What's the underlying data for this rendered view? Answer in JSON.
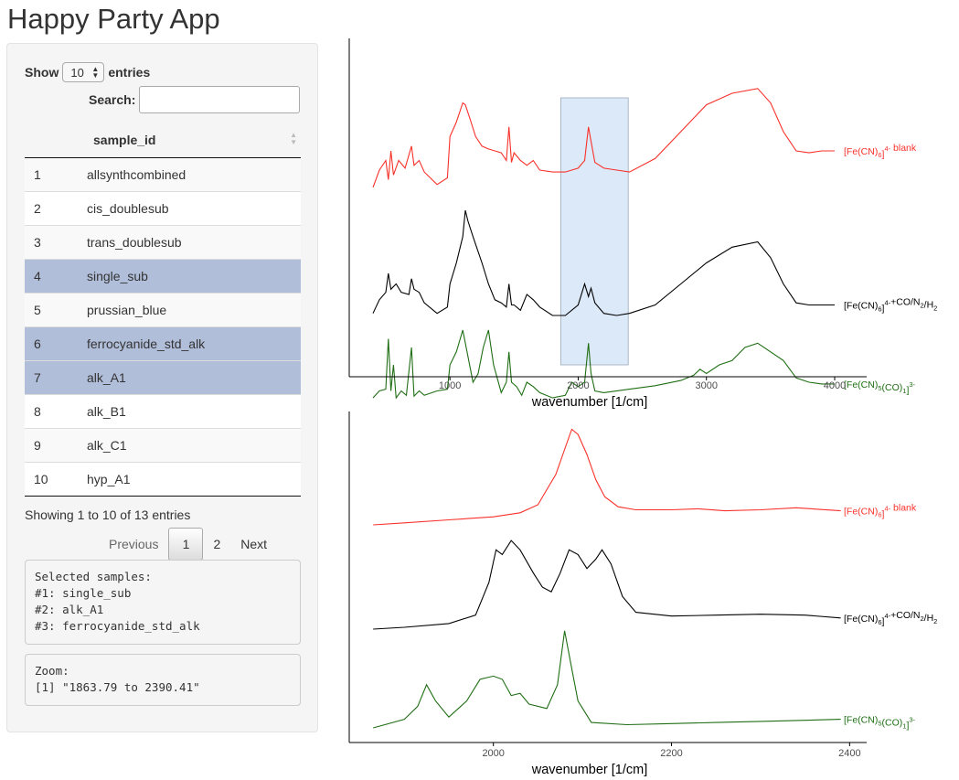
{
  "app": {
    "title": "Happy Party App"
  },
  "table_controls": {
    "show_label": "Show",
    "entries_value": "10",
    "entries_label": "entries",
    "search_label": "Search:",
    "search_value": ""
  },
  "table": {
    "column_header": "sample_id",
    "rows": [
      {
        "id": "1",
        "name": "allsynthcombined",
        "selected": false
      },
      {
        "id": "2",
        "name": "cis_doublesub",
        "selected": false
      },
      {
        "id": "3",
        "name": "trans_doublesub",
        "selected": false
      },
      {
        "id": "4",
        "name": "single_sub",
        "selected": true
      },
      {
        "id": "5",
        "name": "prussian_blue",
        "selected": false
      },
      {
        "id": "6",
        "name": "ferrocyanide_std_alk",
        "selected": true
      },
      {
        "id": "7",
        "name": "alk_A1",
        "selected": true
      },
      {
        "id": "8",
        "name": "alk_B1",
        "selected": false
      },
      {
        "id": "9",
        "name": "alk_C1",
        "selected": false
      },
      {
        "id": "10",
        "name": "hyp_A1",
        "selected": false
      }
    ],
    "info": "Showing 1 to 10 of 13 entries",
    "pagination": {
      "previous": "Previous",
      "pages": [
        "1",
        "2"
      ],
      "current": "1",
      "next": "Next"
    }
  },
  "outputs": {
    "selected_samples": "Selected samples:\n#1: single_sub\n#2: alk_A1\n#3: ferrocyanide_std_alk",
    "zoom": "Zoom:\n[1] \"1863.79 to 2390.41\""
  },
  "colors": {
    "red": "#f8312a",
    "black": "#000000",
    "green": "#1f6e14",
    "selection": "#b0bed9",
    "brush": "#dce9f8"
  },
  "chart_data": [
    {
      "type": "line",
      "title": "",
      "xlabel": "wavenumber [1/cm]",
      "ylabel": "",
      "xlim": [
        400,
        4000
      ],
      "x_ticks": [
        "1000",
        "2000",
        "3000",
        "4000"
      ],
      "brush": [
        1863.79,
        2390.41
      ],
      "series": [
        {
          "name": "[Fe(CN)6]4- blank",
          "label_main": "[Fe(CN)",
          "label_sub": "6",
          "label_sup": "4-",
          "label_tail": " blank",
          "color": "#f8312a",
          "points": [
            [
              400,
              98
            ],
            [
              450,
              80
            ],
            [
              500,
              70
            ],
            [
              520,
              90
            ],
            [
              540,
              60
            ],
            [
              560,
              85
            ],
            [
              600,
              70
            ],
            [
              650,
              78
            ],
            [
              700,
              55
            ],
            [
              720,
              75
            ],
            [
              760,
              70
            ],
            [
              800,
              82
            ],
            [
              900,
              95
            ],
            [
              980,
              88
            ],
            [
              1000,
              45
            ],
            [
              1050,
              30
            ],
            [
              1100,
              10
            ],
            [
              1120,
              12
            ],
            [
              1160,
              28
            ],
            [
              1200,
              45
            ],
            [
              1250,
              55
            ],
            [
              1300,
              58
            ],
            [
              1350,
              60
            ],
            [
              1400,
              62
            ],
            [
              1440,
              70
            ],
            [
              1460,
              35
            ],
            [
              1480,
              72
            ],
            [
              1500,
              62
            ],
            [
              1550,
              70
            ],
            [
              1600,
              75
            ],
            [
              1650,
              70
            ],
            [
              1700,
              80
            ],
            [
              1800,
              82
            ],
            [
              1900,
              82
            ],
            [
              2000,
              78
            ],
            [
              2050,
              70
            ],
            [
              2080,
              35
            ],
            [
              2100,
              50
            ],
            [
              2130,
              72
            ],
            [
              2200,
              78
            ],
            [
              2300,
              80
            ],
            [
              2400,
              82
            ],
            [
              2600,
              68
            ],
            [
              2800,
              40
            ],
            [
              3000,
              12
            ],
            [
              3200,
              0
            ],
            [
              3400,
              -5
            ],
            [
              3500,
              10
            ],
            [
              3600,
              40
            ],
            [
              3700,
              60
            ],
            [
              3800,
              62
            ],
            [
              3900,
              60
            ],
            [
              4000,
              60
            ]
          ]
        },
        {
          "name": "[Fe(CN)6]4- +CO/N2/H2",
          "label_main": "[Fe(CN)",
          "label_sub": "6",
          "label_sup": "4-",
          "label_tail": "+CO/N",
          "label_sub2": "2",
          "label_tail2": "/H",
          "label_sub3": "2",
          "color": "#000000",
          "points": [
            [
              400,
              98
            ],
            [
              450,
              85
            ],
            [
              500,
              78
            ],
            [
              520,
              60
            ],
            [
              540,
              75
            ],
            [
              580,
              70
            ],
            [
              620,
              78
            ],
            [
              680,
              80
            ],
            [
              700,
              65
            ],
            [
              720,
              75
            ],
            [
              760,
              78
            ],
            [
              800,
              88
            ],
            [
              900,
              98
            ],
            [
              980,
              92
            ],
            [
              1000,
              70
            ],
            [
              1050,
              50
            ],
            [
              1100,
              25
            ],
            [
              1120,
              0
            ],
            [
              1140,
              10
            ],
            [
              1180,
              25
            ],
            [
              1250,
              50
            ],
            [
              1300,
              70
            ],
            [
              1350,
              85
            ],
            [
              1400,
              88
            ],
            [
              1440,
              92
            ],
            [
              1460,
              70
            ],
            [
              1480,
              90
            ],
            [
              1500,
              90
            ],
            [
              1550,
              95
            ],
            [
              1600,
              80
            ],
            [
              1650,
              85
            ],
            [
              1700,
              92
            ],
            [
              1800,
              100
            ],
            [
              1900,
              100
            ],
            [
              2000,
              90
            ],
            [
              2050,
              70
            ],
            [
              2080,
              82
            ],
            [
              2100,
              74
            ],
            [
              2130,
              88
            ],
            [
              2200,
              98
            ],
            [
              2300,
              100
            ],
            [
              2400,
              98
            ],
            [
              2600,
              90
            ],
            [
              2800,
              70
            ],
            [
              3000,
              50
            ],
            [
              3200,
              35
            ],
            [
              3400,
              30
            ],
            [
              3500,
              45
            ],
            [
              3600,
              70
            ],
            [
              3700,
              88
            ],
            [
              3800,
              90
            ],
            [
              3900,
              90
            ],
            [
              4000,
              90
            ]
          ]
        },
        {
          "name": "[Fe(CN)5(CO)1]3-",
          "label_main": "[Fe(CN)",
          "label_sub": "5",
          "label_mid": "(CO)",
          "label_sub2": "1",
          "label_sup": "3-",
          "color": "#1f6e14",
          "points": [
            [
              400,
              98
            ],
            [
              450,
              90
            ],
            [
              500,
              88
            ],
            [
              520,
              30
            ],
            [
              540,
              90
            ],
            [
              560,
              60
            ],
            [
              580,
              98
            ],
            [
              620,
              90
            ],
            [
              660,
              95
            ],
            [
              700,
              40
            ],
            [
              720,
              96
            ],
            [
              760,
              90
            ],
            [
              800,
              95
            ],
            [
              900,
              90
            ],
            [
              980,
              88
            ],
            [
              1000,
              60
            ],
            [
              1050,
              45
            ],
            [
              1100,
              20
            ],
            [
              1140,
              50
            ],
            [
              1180,
              80
            ],
            [
              1220,
              70
            ],
            [
              1260,
              40
            ],
            [
              1300,
              20
            ],
            [
              1340,
              60
            ],
            [
              1400,
              92
            ],
            [
              1440,
              80
            ],
            [
              1460,
              45
            ],
            [
              1480,
              80
            ],
            [
              1520,
              85
            ],
            [
              1560,
              95
            ],
            [
              1600,
              80
            ],
            [
              1650,
              85
            ],
            [
              1700,
              92
            ],
            [
              1800,
              98
            ],
            [
              1900,
              95
            ],
            [
              1950,
              80
            ],
            [
              2000,
              85
            ],
            [
              2050,
              80
            ],
            [
              2080,
              35
            ],
            [
              2100,
              70
            ],
            [
              2130,
              90
            ],
            [
              2200,
              92
            ],
            [
              2400,
              88
            ],
            [
              2600,
              84
            ],
            [
              2800,
              78
            ],
            [
              2900,
              72
            ],
            [
              2950,
              65
            ],
            [
              3000,
              70
            ],
            [
              3100,
              60
            ],
            [
              3200,
              55
            ],
            [
              3300,
              40
            ],
            [
              3400,
              35
            ],
            [
              3500,
              45
            ],
            [
              3600,
              55
            ],
            [
              3700,
              75
            ],
            [
              3800,
              80
            ],
            [
              3900,
              82
            ],
            [
              4000,
              82
            ]
          ]
        }
      ]
    },
    {
      "type": "line",
      "title": "",
      "xlabel": "wavenumber [1/cm]",
      "ylabel": "",
      "xlim": [
        1863.79,
        2390.41
      ],
      "x_ticks": [
        "2000",
        "2200",
        "2400"
      ],
      "series": [
        {
          "name": "[Fe(CN)6]4- blank",
          "label_main": "[Fe(CN)",
          "label_sub": "6",
          "label_sup": "4-",
          "label_tail": " blank",
          "color": "#f8312a",
          "points": [
            [
              1865,
              100
            ],
            [
              1900,
              98
            ],
            [
              1950,
              95
            ],
            [
              2000,
              92
            ],
            [
              2030,
              88
            ],
            [
              2050,
              80
            ],
            [
              2060,
              65
            ],
            [
              2070,
              50
            ],
            [
              2080,
              25
            ],
            [
              2088,
              5
            ],
            [
              2095,
              10
            ],
            [
              2105,
              30
            ],
            [
              2115,
              55
            ],
            [
              2125,
              72
            ],
            [
              2140,
              82
            ],
            [
              2160,
              85
            ],
            [
              2200,
              85
            ],
            [
              2230,
              84
            ],
            [
              2260,
              86
            ],
            [
              2300,
              85
            ],
            [
              2340,
              83
            ],
            [
              2390,
              86
            ]
          ]
        },
        {
          "name": "[Fe(CN)6]4- +CO/N2/H2",
          "label_main": "[Fe(CN)",
          "label_sub": "6",
          "label_sup": "4-",
          "label_tail": "+CO/N",
          "label_sub2": "2",
          "label_tail2": "/H",
          "label_sub3": "2",
          "color": "#000000",
          "points": [
            [
              1865,
              100
            ],
            [
              1900,
              98
            ],
            [
              1950,
              94
            ],
            [
              1980,
              85
            ],
            [
              1995,
              50
            ],
            [
              2003,
              15
            ],
            [
              2010,
              20
            ],
            [
              2020,
              5
            ],
            [
              2030,
              15
            ],
            [
              2045,
              40
            ],
            [
              2055,
              55
            ],
            [
              2065,
              60
            ],
            [
              2075,
              40
            ],
            [
              2085,
              15
            ],
            [
              2095,
              20
            ],
            [
              2105,
              35
            ],
            [
              2115,
              25
            ],
            [
              2122,
              15
            ],
            [
              2132,
              30
            ],
            [
              2145,
              65
            ],
            [
              2160,
              82
            ],
            [
              2200,
              86
            ],
            [
              2250,
              85
            ],
            [
              2300,
              84
            ],
            [
              2350,
              85
            ],
            [
              2390,
              88
            ]
          ]
        },
        {
          "name": "[Fe(CN)5(CO)1]3-",
          "label_main": "[Fe(CN)",
          "label_sub": "5",
          "label_mid": "(CO)",
          "label_sub2": "1",
          "label_sup": "3-",
          "color": "#1f6e14",
          "points": [
            [
              1865,
              100
            ],
            [
              1900,
              92
            ],
            [
              1915,
              80
            ],
            [
              1925,
              60
            ],
            [
              1935,
              75
            ],
            [
              1950,
              90
            ],
            [
              1970,
              75
            ],
            [
              1985,
              55
            ],
            [
              2000,
              52
            ],
            [
              2010,
              55
            ],
            [
              2020,
              70
            ],
            [
              2030,
              68
            ],
            [
              2040,
              78
            ],
            [
              2060,
              82
            ],
            [
              2072,
              60
            ],
            [
              2080,
              10
            ],
            [
              2088,
              45
            ],
            [
              2095,
              75
            ],
            [
              2110,
              95
            ],
            [
              2150,
              97
            ],
            [
              2200,
              96
            ],
            [
              2250,
              95
            ],
            [
              2300,
              94
            ],
            [
              2350,
              93
            ],
            [
              2390,
              92
            ]
          ]
        }
      ]
    }
  ]
}
